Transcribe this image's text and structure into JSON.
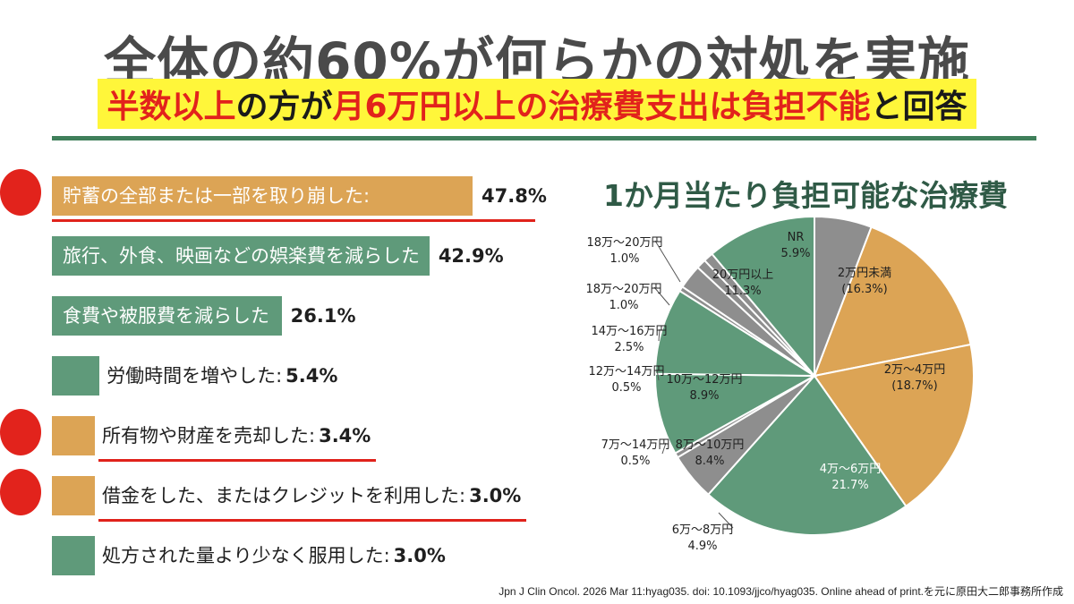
{
  "header": {
    "headline": "全体の約60%が何らかの対処を実施",
    "subline_parts": [
      {
        "text": "半数以上",
        "red": true
      },
      {
        "text": "の方が",
        "red": false
      },
      {
        "text": "月6万円以上の治療費支出は負担不能",
        "red": true
      },
      {
        "text": "と回答",
        "red": false
      }
    ]
  },
  "colors": {
    "green": "#5f9a7a",
    "orange": "#dca455",
    "gray": "#8e8e8e",
    "red": "#e2221c",
    "dark_green": "#2f5a46"
  },
  "citation": "Jpn J Clin Oncol. 2026 Mar 11:hyag035. doi: 10.1093/jjco/hyag035. Online ahead of print.を元に原田大二郎事務所作成",
  "chart_data": [
    {
      "type": "bar",
      "orientation": "horizontal",
      "categories": [
        "貯蓄の全部または一部を取り崩した:",
        "旅行、外食、映画などの娯楽費を減らした:",
        "食費や被服費を減らした:",
        "労働時間を増やした:",
        "所有物や財産を売却した:",
        "借金をした、またはクレジットを利用した:",
        "処方された量より少なく服用した:"
      ],
      "values": [
        47.8,
        42.9,
        26.1,
        5.4,
        3.4,
        3.0,
        3.0
      ],
      "value_labels": [
        "47.8%",
        "42.9%",
        "26.1%",
        "5.4%",
        "3.4%",
        "3.0%",
        "3.0%"
      ],
      "highlight": [
        true,
        false,
        false,
        false,
        true,
        true,
        false
      ],
      "xlim": [
        0,
        47.8
      ]
    },
    {
      "type": "pie",
      "title": "1か月当たり負担可能な治療費",
      "slices": [
        {
          "label": "2万円未満",
          "pct_label": "(16.3%)",
          "value": 16.3,
          "color": "orange"
        },
        {
          "label": "2万～4万円",
          "pct_label": "(18.7%)",
          "value": 18.7,
          "color": "orange"
        },
        {
          "label": "4万～6万円",
          "pct_label": "21.7%",
          "value": 21.7,
          "color": "green"
        },
        {
          "label": "6万～8万円",
          "pct_label": "4.9%",
          "value": 4.9,
          "color": "gray"
        },
        {
          "label": "7万～14万円",
          "pct_label": "0.5%",
          "value": 0.5,
          "color": "gray"
        },
        {
          "label": "8万～10万円",
          "pct_label": "8.4%",
          "value": 8.4,
          "color": "green"
        },
        {
          "label": "10万～12万円",
          "pct_label": "8.9%",
          "value": 8.9,
          "color": "green"
        },
        {
          "label": "12万～14万円",
          "pct_label": "0.5%",
          "value": 0.5,
          "color": "gray"
        },
        {
          "label": "14万～16万円",
          "pct_label": "2.5%",
          "value": 2.5,
          "color": "gray"
        },
        {
          "label": "18万～20万円",
          "pct_label": "1.0%",
          "value": 1.0,
          "color": "gray"
        },
        {
          "label": "18万～20万円",
          "pct_label": "1.0%",
          "value": 1.0,
          "color": "gray"
        },
        {
          "label": "20万円以上",
          "pct_label": "11.3%",
          "value": 11.3,
          "color": "green"
        },
        {
          "label": "NR",
          "pct_label": "5.9%",
          "value": 5.9,
          "color": "gray"
        }
      ]
    }
  ]
}
